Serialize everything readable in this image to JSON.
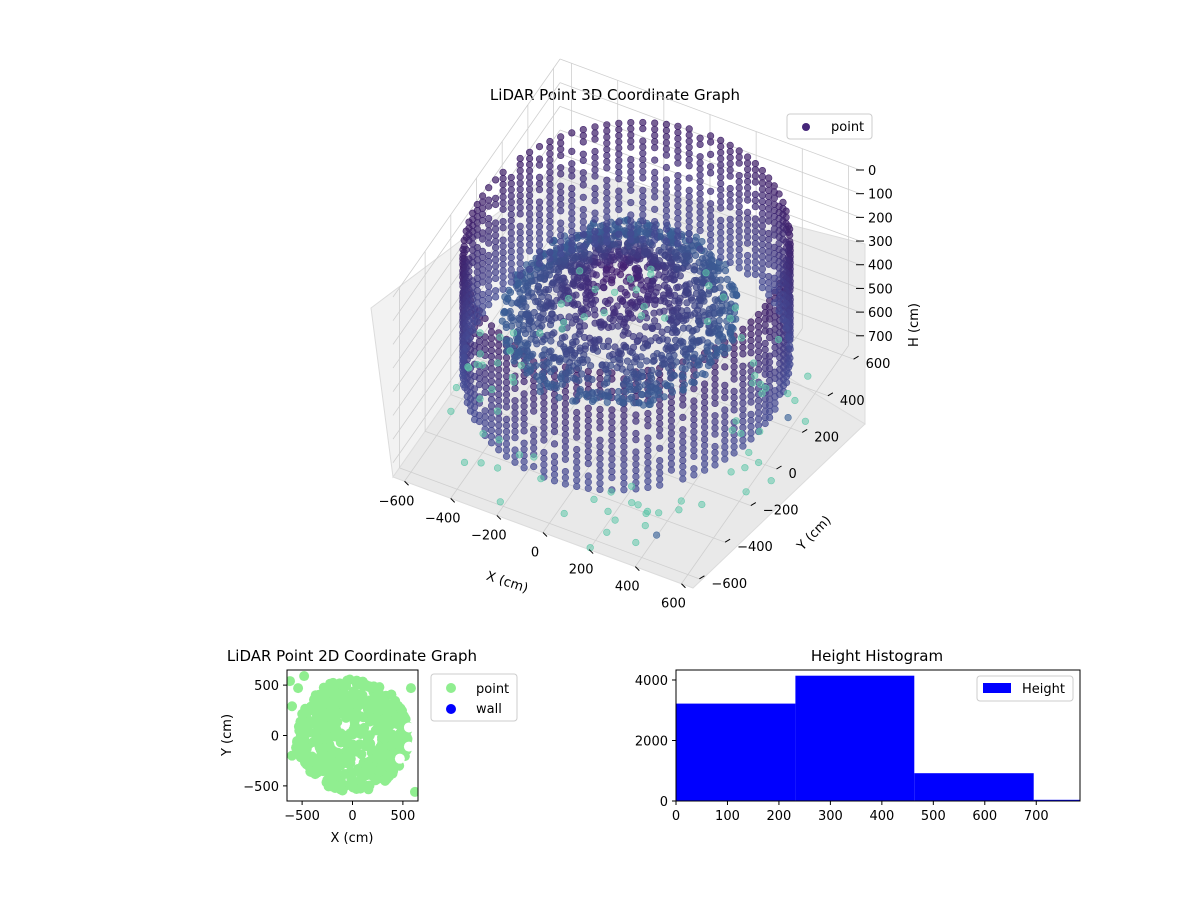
{
  "chart_data": [
    {
      "type": "scatter",
      "projection": "3d",
      "title": "LiDAR Point 3D Coordinate Graph",
      "xlabel": "X (cm)",
      "ylabel": "Y (cm)",
      "zlabel": "H (cm)",
      "x_ticks": [
        "−600",
        "−400",
        "−200",
        "0",
        "200",
        "400",
        "600"
      ],
      "y_ticks": [
        "−600",
        "−400",
        "−200",
        "0",
        "200",
        "400",
        "600"
      ],
      "z_ticks": [
        "0",
        "100",
        "200",
        "300",
        "400",
        "500",
        "600",
        "700"
      ],
      "xlim": [
        -650,
        650
      ],
      "ylim": [
        -650,
        650
      ],
      "zlim": [
        0,
        760
      ],
      "z_inverted": true,
      "legend": {
        "placement": "top-right",
        "entries": [
          {
            "name": "point",
            "color": "#46277a"
          }
        ]
      },
      "colormap": "viridis",
      "description_of_points": [
        {
          "group": "wall-ring",
          "radius": 620,
          "h_range": [
            60,
            560
          ],
          "color_by": "height"
        },
        {
          "group": "inner-mound",
          "radius_range": [
            0,
            450
          ],
          "h_range": [
            220,
            420
          ]
        },
        {
          "group": "floor-scatter",
          "h": 710
        }
      ],
      "outliers": [
        {
          "x": 600,
          "y": 180,
          "h": 700
        },
        {
          "x": 420,
          "y": -520,
          "h": 720
        }
      ],
      "grid": true
    },
    {
      "type": "scatter",
      "title": "LiDAR Point 2D Coordinate Graph",
      "xlabel": "X (cm)",
      "ylabel": "Y (cm)",
      "x_ticks": [
        "−500",
        "0",
        "500"
      ],
      "y_ticks": [
        "−500",
        "0",
        "500"
      ],
      "xlim": [
        -650,
        650
      ],
      "ylim": [
        -650,
        650
      ],
      "series": [
        {
          "name": "point",
          "color": "#90ee90"
        },
        {
          "name": "wall",
          "color": "#0000ff"
        }
      ],
      "legend": {
        "placement": "outside-right"
      }
    },
    {
      "type": "bar",
      "title": "Height Histogram",
      "x_ticks": [
        "0",
        "100",
        "200",
        "300",
        "400",
        "500",
        "600",
        "700"
      ],
      "y_ticks": [
        "0",
        "2000",
        "4000"
      ],
      "xlim": [
        0,
        785
      ],
      "ylim": [
        0,
        4330
      ],
      "bins": [
        {
          "start": 0,
          "end": 232,
          "value": 3220
        },
        {
          "start": 232,
          "end": 463,
          "value": 4140
        },
        {
          "start": 463,
          "end": 695,
          "value": 920
        },
        {
          "start": 695,
          "end": 785,
          "value": 40
        }
      ],
      "series": [
        {
          "name": "Height",
          "color": "#0000ff"
        }
      ],
      "legend": {
        "placement": "top-right"
      }
    }
  ]
}
